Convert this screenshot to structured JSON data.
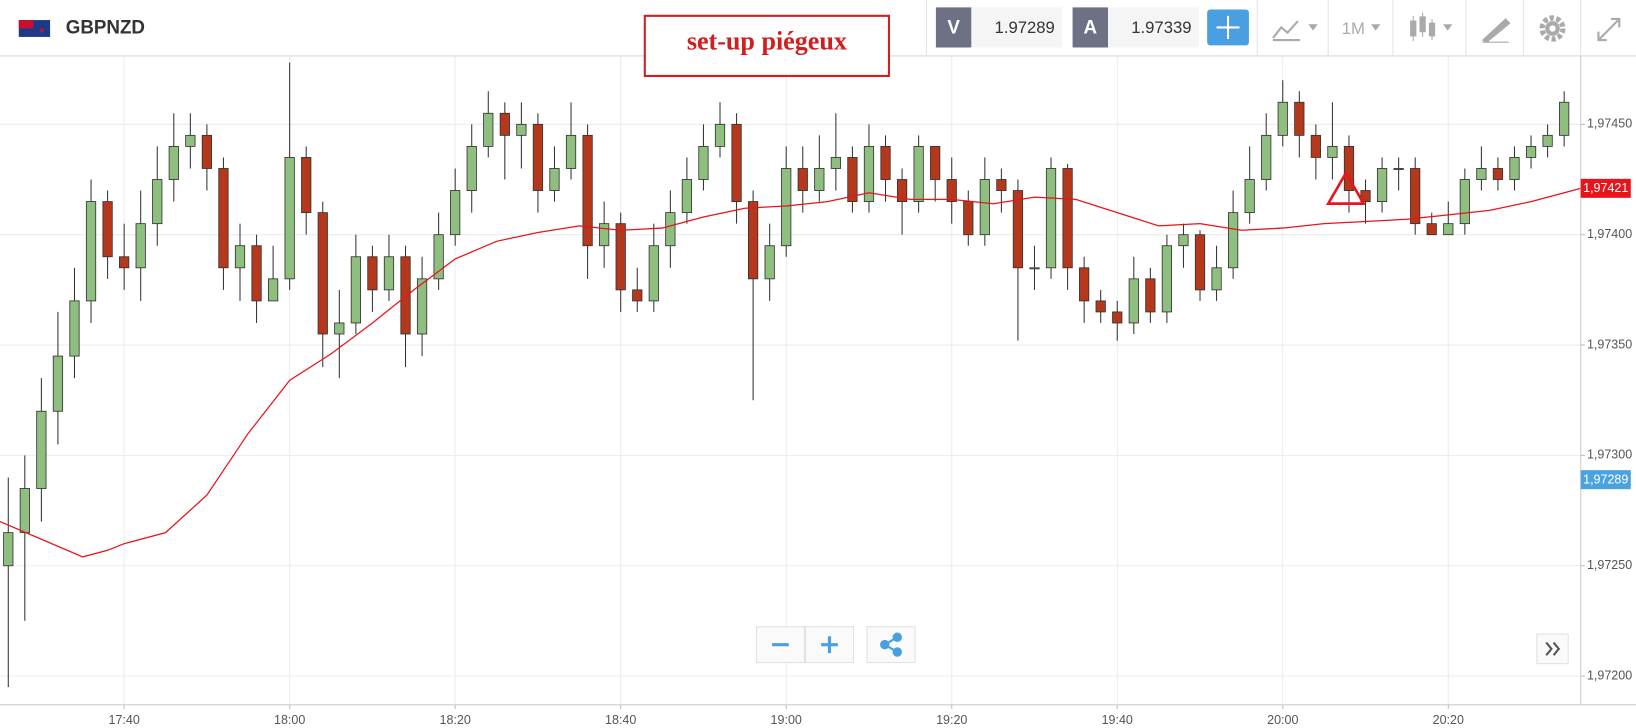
{
  "toolbar": {
    "symbol": "GBPNZD",
    "bid_label": "V",
    "bid": "1.97289",
    "ask_label": "A",
    "ask": "1.97339",
    "timeframe": "1M"
  },
  "chart_data": {
    "type": "candlestick",
    "annotation": "set-up piégeux",
    "x": [
      "17:26",
      "17:28",
      "17:30",
      "17:32",
      "17:34",
      "17:36",
      "17:38",
      "17:40",
      "17:42",
      "17:44",
      "17:46",
      "17:48",
      "17:50",
      "17:52",
      "17:54",
      "17:56",
      "17:58",
      "18:00",
      "18:02",
      "18:04",
      "18:06",
      "18:08",
      "18:10",
      "18:12",
      "18:14",
      "18:16",
      "18:18",
      "18:20",
      "18:22",
      "18:24",
      "18:26",
      "18:28",
      "18:30",
      "18:32",
      "18:34",
      "18:36",
      "18:38",
      "18:40",
      "18:42",
      "18:44",
      "18:46",
      "18:48",
      "18:50",
      "18:52",
      "18:54",
      "18:56",
      "18:58",
      "19:00",
      "19:02",
      "19:04",
      "19:06",
      "19:08",
      "19:10",
      "19:12",
      "19:14",
      "19:16",
      "19:18",
      "19:20",
      "19:22",
      "19:24",
      "19:26",
      "19:28",
      "19:30",
      "19:32",
      "19:34",
      "19:36",
      "19:38",
      "19:40",
      "19:42",
      "19:44",
      "19:46",
      "19:48",
      "19:50",
      "19:52",
      "19:54",
      "19:56",
      "19:58",
      "20:00",
      "20:02",
      "20:04",
      "20:06",
      "20:08",
      "20:10",
      "20:12",
      "20:14",
      "20:16",
      "20:18",
      "20:20",
      "20:22",
      "20:24",
      "20:26",
      "20:28",
      "20:30",
      "20:32",
      "20:34"
    ],
    "candles": [
      [
        1.9725,
        1.9729,
        1.97195,
        1.97265
      ],
      [
        1.97265,
        1.973,
        1.97225,
        1.97285
      ],
      [
        1.97285,
        1.97335,
        1.9727,
        1.9732
      ],
      [
        1.9732,
        1.97365,
        1.97305,
        1.97345
      ],
      [
        1.97345,
        1.97385,
        1.97335,
        1.9737
      ],
      [
        1.9737,
        1.97425,
        1.9736,
        1.97415
      ],
      [
        1.97415,
        1.9742,
        1.9738,
        1.9739
      ],
      [
        1.9739,
        1.97405,
        1.97375,
        1.97385
      ],
      [
        1.97385,
        1.9742,
        1.9737,
        1.97405
      ],
      [
        1.97405,
        1.9744,
        1.97395,
        1.97425
      ],
      [
        1.97425,
        1.97455,
        1.97415,
        1.9744
      ],
      [
        1.9744,
        1.97455,
        1.9743,
        1.97445
      ],
      [
        1.97445,
        1.9745,
        1.9742,
        1.9743
      ],
      [
        1.9743,
        1.97435,
        1.97375,
        1.97385
      ],
      [
        1.97385,
        1.97405,
        1.9737,
        1.97395
      ],
      [
        1.97395,
        1.974,
        1.9736,
        1.9737
      ],
      [
        1.9737,
        1.97395,
        1.9737,
        1.9738
      ],
      [
        1.9738,
        1.97478,
        1.97375,
        1.97435
      ],
      [
        1.97435,
        1.9744,
        1.974,
        1.9741
      ],
      [
        1.9741,
        1.97415,
        1.9734,
        1.97355
      ],
      [
        1.97355,
        1.97375,
        1.97335,
        1.9736
      ],
      [
        1.9736,
        1.974,
        1.97355,
        1.9739
      ],
      [
        1.9739,
        1.97395,
        1.97365,
        1.97375
      ],
      [
        1.97375,
        1.974,
        1.9737,
        1.9739
      ],
      [
        1.9739,
        1.97395,
        1.9734,
        1.97355
      ],
      [
        1.97355,
        1.9739,
        1.97345,
        1.9738
      ],
      [
        1.9738,
        1.9741,
        1.97375,
        1.974
      ],
      [
        1.974,
        1.9743,
        1.97395,
        1.9742
      ],
      [
        1.9742,
        1.9745,
        1.9741,
        1.9744
      ],
      [
        1.9744,
        1.97465,
        1.97435,
        1.97455
      ],
      [
        1.97455,
        1.9746,
        1.97425,
        1.97445
      ],
      [
        1.97445,
        1.9746,
        1.9743,
        1.9745
      ],
      [
        1.9745,
        1.97455,
        1.9741,
        1.9742
      ],
      [
        1.9742,
        1.9744,
        1.97415,
        1.9743
      ],
      [
        1.9743,
        1.9746,
        1.97425,
        1.97445
      ],
      [
        1.97445,
        1.9745,
        1.9738,
        1.97395
      ],
      [
        1.97395,
        1.97415,
        1.97385,
        1.97405
      ],
      [
        1.97405,
        1.9741,
        1.97365,
        1.97375
      ],
      [
        1.97375,
        1.97385,
        1.97365,
        1.9737
      ],
      [
        1.9737,
        1.97405,
        1.97365,
        1.97395
      ],
      [
        1.97395,
        1.9742,
        1.97385,
        1.9741
      ],
      [
        1.9741,
        1.97435,
        1.97405,
        1.97425
      ],
      [
        1.97425,
        1.9745,
        1.9742,
        1.9744
      ],
      [
        1.9744,
        1.9746,
        1.97435,
        1.9745
      ],
      [
        1.9745,
        1.97455,
        1.97405,
        1.97415
      ],
      [
        1.97415,
        1.9742,
        1.97325,
        1.9738
      ],
      [
        1.9738,
        1.97405,
        1.9737,
        1.97395
      ],
      [
        1.97395,
        1.9744,
        1.9739,
        1.9743
      ],
      [
        1.9743,
        1.9744,
        1.9741,
        1.9742
      ],
      [
        1.9742,
        1.97445,
        1.97415,
        1.9743
      ],
      [
        1.9743,
        1.97455,
        1.9742,
        1.97435
      ],
      [
        1.97435,
        1.9744,
        1.9741,
        1.97415
      ],
      [
        1.97415,
        1.9745,
        1.9741,
        1.9744
      ],
      [
        1.9744,
        1.97445,
        1.97415,
        1.97425
      ],
      [
        1.97425,
        1.9743,
        1.974,
        1.97415
      ],
      [
        1.97415,
        1.97445,
        1.9741,
        1.9744
      ],
      [
        1.9744,
        1.9744,
        1.97415,
        1.97425
      ],
      [
        1.97425,
        1.97435,
        1.97405,
        1.97415
      ],
      [
        1.97415,
        1.9742,
        1.97395,
        1.974
      ],
      [
        1.974,
        1.97435,
        1.97395,
        1.97425
      ],
      [
        1.97425,
        1.9743,
        1.9741,
        1.9742
      ],
      [
        1.9742,
        1.97425,
        1.97352,
        1.97385
      ],
      [
        1.97385,
        1.97395,
        1.97375,
        1.97385
      ],
      [
        1.97385,
        1.97435,
        1.9738,
        1.9743
      ],
      [
        1.9743,
        1.97432,
        1.97375,
        1.97385
      ],
      [
        1.97385,
        1.9739,
        1.9736,
        1.9737
      ],
      [
        1.9737,
        1.97375,
        1.9736,
        1.97365
      ],
      [
        1.97365,
        1.9737,
        1.97352,
        1.9736
      ],
      [
        1.9736,
        1.9739,
        1.97355,
        1.9738
      ],
      [
        1.9738,
        1.97385,
        1.9736,
        1.97365
      ],
      [
        1.97365,
        1.974,
        1.9736,
        1.97395
      ],
      [
        1.97395,
        1.97405,
        1.97385,
        1.974
      ],
      [
        1.974,
        1.97402,
        1.9737,
        1.97375
      ],
      [
        1.97375,
        1.97395,
        1.9737,
        1.97385
      ],
      [
        1.97385,
        1.9742,
        1.9738,
        1.9741
      ],
      [
        1.9741,
        1.9744,
        1.97405,
        1.97425
      ],
      [
        1.97425,
        1.97455,
        1.9742,
        1.97445
      ],
      [
        1.97445,
        1.9747,
        1.9744,
        1.9746
      ],
      [
        1.9746,
        1.97465,
        1.97435,
        1.97445
      ],
      [
        1.97445,
        1.9745,
        1.97425,
        1.97435
      ],
      [
        1.97435,
        1.9746,
        1.97425,
        1.9744
      ],
      [
        1.9744,
        1.97445,
        1.9741,
        1.9742
      ],
      [
        1.9742,
        1.97425,
        1.97405,
        1.97415
      ],
      [
        1.97415,
        1.97435,
        1.9741,
        1.9743
      ],
      [
        1.9743,
        1.97435,
        1.9742,
        1.9743
      ],
      [
        1.9743,
        1.97435,
        1.974,
        1.97405
      ],
      [
        1.97405,
        1.9741,
        1.974,
        1.974
      ],
      [
        1.974,
        1.97415,
        1.974,
        1.97405
      ],
      [
        1.97405,
        1.9743,
        1.974,
        1.97425
      ],
      [
        1.97425,
        1.9744,
        1.9742,
        1.9743
      ],
      [
        1.9743,
        1.97435,
        1.9742,
        1.97425
      ],
      [
        1.97425,
        1.9744,
        1.9742,
        1.97435
      ],
      [
        1.97435,
        1.97445,
        1.9743,
        1.9744
      ],
      [
        1.9744,
        1.9745,
        1.97435,
        1.97445
      ],
      [
        1.97445,
        1.97465,
        1.9744,
        1.9746
      ]
    ],
    "up_color": "#8fbf7f",
    "down_color": "#b5381c",
    "ma": {
      "color": "#e8141c",
      "x": [
        "17:25",
        "17:30",
        "17:35",
        "17:38",
        "17:40",
        "17:45",
        "17:50",
        "17:55",
        "18:00",
        "18:05",
        "18:10",
        "18:15",
        "18:20",
        "18:25",
        "18:30",
        "18:35",
        "18:40",
        "18:45",
        "18:50",
        "18:55",
        "19:00",
        "19:05",
        "19:10",
        "19:15",
        "19:20",
        "19:25",
        "19:30",
        "19:35",
        "19:40",
        "19:45",
        "19:50",
        "19:55",
        "20:00",
        "20:05",
        "20:10",
        "20:15",
        "20:20",
        "20:25",
        "20:30",
        "20:36"
      ],
      "values": [
        1.9727,
        1.97262,
        1.97254,
        1.97257,
        1.9726,
        1.97265,
        1.97282,
        1.9731,
        1.97334,
        1.97346,
        1.9736,
        1.97375,
        1.97389,
        1.97397,
        1.97401,
        1.97404,
        1.97402,
        1.97403,
        1.97408,
        1.97412,
        1.97413,
        1.97415,
        1.97419,
        1.97416,
        1.97416,
        1.97414,
        1.97417,
        1.97416,
        1.9741,
        1.97404,
        1.97405,
        1.97402,
        1.97403,
        1.97405,
        1.97406,
        1.97407,
        1.97409,
        1.97411,
        1.97415,
        1.97421
      ]
    },
    "xlim": [
      "17:25",
      "20:36"
    ],
    "xticks": [
      "17:40",
      "18:00",
      "18:20",
      "18:40",
      "19:00",
      "19:20",
      "19:40",
      "20:00",
      "20:20"
    ],
    "ylim": [
      1.97187,
      1.97481
    ],
    "yticks": [
      {
        "value": 1.972,
        "label": "1,97200"
      },
      {
        "value": 1.9725,
        "label": "1,97250"
      },
      {
        "value": 1.973,
        "label": "1,97300"
      },
      {
        "value": 1.9735,
        "label": "1,97350"
      },
      {
        "value": 1.974,
        "label": "1,97400"
      },
      {
        "value": 1.9745,
        "label": "1,97450"
      }
    ],
    "price_tags": [
      {
        "value": 1.97421,
        "label": "1,97421",
        "color": "#e8141c"
      },
      {
        "value": 1.97289,
        "label": "1,97289",
        "color": "#4aa3df"
      }
    ],
    "grid": true
  }
}
